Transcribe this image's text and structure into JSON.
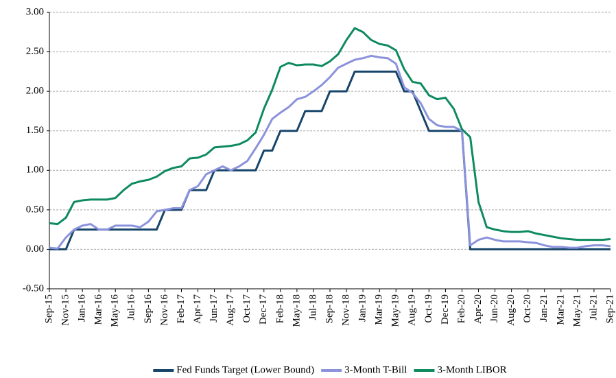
{
  "chart_data": {
    "type": "line",
    "categories": [
      "Sep-15",
      null,
      "Nov-15",
      null,
      "Jan-16",
      null,
      "Mar-16",
      null,
      "May-16",
      null,
      "Jul-16",
      null,
      "Sep-16",
      null,
      "Nov-16",
      null,
      "Feb-17",
      null,
      "Apr-17",
      null,
      "Jun-17",
      null,
      "Aug-17",
      null,
      "Oct-17",
      null,
      "Dec-17",
      null,
      "Feb-18",
      null,
      "May-18",
      null,
      "Jul-18",
      null,
      "Sep-18",
      null,
      "Nov-18",
      null,
      "Jan-19",
      null,
      "Mar-19",
      null,
      "May-19",
      null,
      "Aug-19",
      null,
      "Oct-19",
      null,
      "Dec-19",
      null,
      "Feb-20",
      null,
      "Apr-20",
      null,
      "Jun-20",
      null,
      "Aug-20",
      null,
      "Oct-20",
      null,
      "Jan-21",
      null,
      "Mar-21",
      null,
      "May-21",
      null,
      "Jul-21",
      null,
      "Sep-21"
    ],
    "series": [
      {
        "name": "Fed Funds Target (Lower Bound)",
        "color": "#17456a",
        "values": [
          0,
          0,
          0,
          0.25,
          0.25,
          0.25,
          0.25,
          0.25,
          0.25,
          0.25,
          0.25,
          0.25,
          0.25,
          0.25,
          0.5,
          0.5,
          0.5,
          0.75,
          0.75,
          0.75,
          1,
          1,
          1,
          1,
          1,
          1,
          1.25,
          1.25,
          1.5,
          1.5,
          1.5,
          1.75,
          1.75,
          1.75,
          2,
          2,
          2,
          2.25,
          2.25,
          2.25,
          2.25,
          2.25,
          2.25,
          2,
          2,
          1.75,
          1.5,
          1.5,
          1.5,
          1.5,
          1.5,
          0,
          0,
          0,
          0,
          0,
          0,
          0,
          0,
          0,
          0,
          0,
          0,
          0,
          0,
          0,
          0,
          0,
          0
        ]
      },
      {
        "name": "3-Month T-Bill",
        "color": "#8b92dc",
        "values": [
          0.02,
          0.01,
          0.15,
          0.25,
          0.3,
          0.32,
          0.25,
          0.25,
          0.3,
          0.3,
          0.3,
          0.28,
          0.35,
          0.48,
          0.5,
          0.52,
          0.52,
          0.75,
          0.8,
          0.95,
          1.0,
          1.05,
          1.0,
          1.05,
          1.12,
          1.28,
          1.45,
          1.65,
          1.73,
          1.8,
          1.9,
          1.93,
          2.0,
          2.08,
          2.18,
          2.3,
          2.35,
          2.4,
          2.42,
          2.45,
          2.43,
          2.42,
          2.35,
          2.05,
          1.98,
          1.85,
          1.65,
          1.57,
          1.55,
          1.55,
          1.5,
          0.05,
          0.12,
          0.15,
          0.12,
          0.1,
          0.1,
          0.1,
          0.09,
          0.08,
          0.05,
          0.03,
          0.03,
          0.02,
          0.02,
          0.04,
          0.05,
          0.05,
          0.04
        ]
      },
      {
        "name": "3-Month LIBOR",
        "color": "#0e8a5f",
        "values": [
          0.33,
          0.32,
          0.4,
          0.6,
          0.62,
          0.63,
          0.63,
          0.63,
          0.65,
          0.75,
          0.83,
          0.86,
          0.88,
          0.92,
          0.99,
          1.03,
          1.05,
          1.15,
          1.16,
          1.2,
          1.29,
          1.3,
          1.31,
          1.33,
          1.38,
          1.48,
          1.78,
          2.02,
          2.31,
          2.36,
          2.33,
          2.34,
          2.34,
          2.32,
          2.38,
          2.47,
          2.65,
          2.8,
          2.75,
          2.65,
          2.6,
          2.58,
          2.52,
          2.28,
          2.12,
          2.1,
          1.95,
          1.9,
          1.92,
          1.78,
          1.52,
          1.42,
          0.6,
          0.28,
          0.25,
          0.23,
          0.22,
          0.22,
          0.23,
          0.2,
          0.18,
          0.16,
          0.14,
          0.13,
          0.12,
          0.12,
          0.12,
          0.12,
          0.13
        ]
      }
    ],
    "ylim": [
      -0.5,
      3
    ],
    "yticks": [
      {
        "value": -0.5,
        "label": "-0.50"
      },
      {
        "value": 0,
        "label": "0.00"
      },
      {
        "value": 0.5,
        "label": "0.50"
      },
      {
        "value": 1,
        "label": "1.00"
      },
      {
        "value": 1.5,
        "label": "1.50"
      },
      {
        "value": 2,
        "label": "2.00"
      },
      {
        "value": 2.5,
        "label": "2.50"
      },
      {
        "value": 3,
        "label": "3.00"
      }
    ],
    "grid": true,
    "legend": "bottom"
  }
}
